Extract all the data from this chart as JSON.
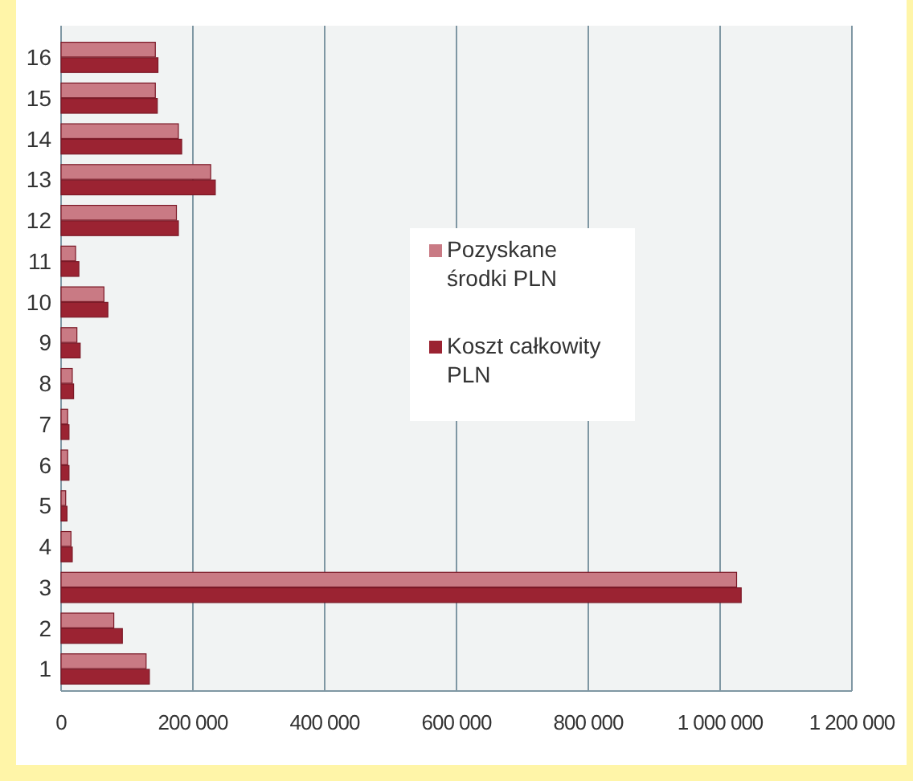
{
  "chart_data": {
    "type": "bar",
    "orientation": "horizontal",
    "categories": [
      "16",
      "15",
      "14",
      "13",
      "12",
      "11",
      "10",
      "9",
      "8",
      "7",
      "6",
      "5",
      "4",
      "3",
      "2",
      "1"
    ],
    "series": [
      {
        "name": "Pozyskane środki PLN",
        "color": "#c97a84",
        "values": [
          143000,
          143000,
          178000,
          227000,
          175000,
          22000,
          65000,
          24000,
          17000,
          10000,
          10000,
          7000,
          15000,
          1025000,
          80000,
          129000
        ]
      },
      {
        "name": "Koszt całkowity PLN",
        "color": "#9b2332",
        "values": [
          147000,
          146000,
          183000,
          234000,
          178000,
          27000,
          71000,
          29000,
          19000,
          12000,
          12000,
          9000,
          17000,
          1032000,
          93000,
          134000
        ]
      }
    ],
    "xlim": [
      0,
      1200000
    ],
    "xticks": [
      0,
      {
        "value": 200000,
        "label": "200 000"
      },
      {
        "value": 400000,
        "label": "400 000"
      },
      {
        "value": 600000,
        "label": "600 000"
      },
      {
        "value": 800000,
        "label": "800 000"
      },
      {
        "value": 1000000,
        "label": "1 000 000"
      },
      {
        "value": 1200000,
        "label": "1 200 000"
      }
    ],
    "grid": "x",
    "legend": "right"
  }
}
